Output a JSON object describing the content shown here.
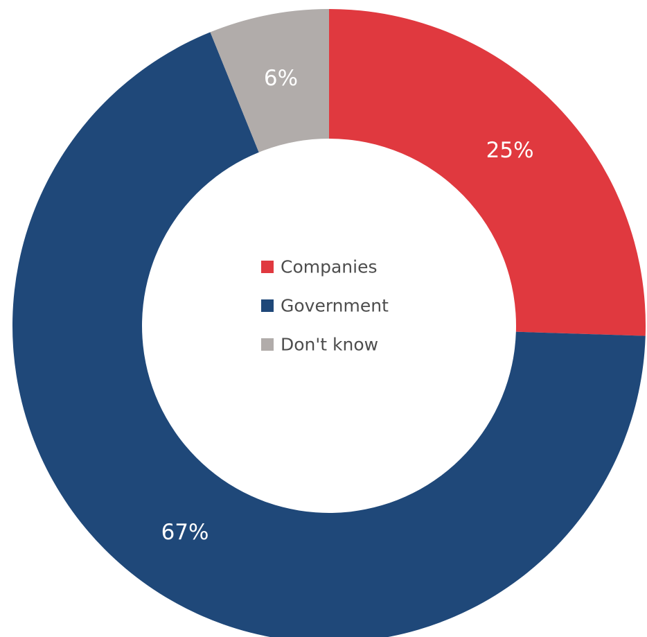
{
  "chart_data": {
    "type": "pie",
    "variant": "donut",
    "categories": [
      "Companies",
      "Government",
      "Don't know"
    ],
    "values": [
      25,
      67,
      6
    ],
    "labels": [
      "25%",
      "67%",
      "6%"
    ],
    "colors": [
      "#e0393f",
      "#1f4879",
      "#b1acaa"
    ],
    "legend": {
      "position": "center",
      "items": [
        "Companies",
        "Government",
        "Don't know"
      ]
    }
  }
}
